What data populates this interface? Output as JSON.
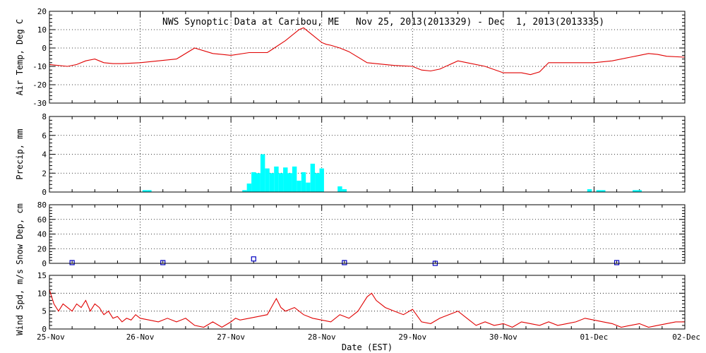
{
  "title": "NWS Synoptic Data at Caribou, ME   Nov 25, 2013(2013329) - Dec  1, 2013(2013335)",
  "colors": {
    "background": "#ffffff",
    "axes": "#000000",
    "temp_line": "#e00000",
    "wind_line": "#e00000",
    "precip_bars": "#00ffff",
    "snow_markers": "#0000c0"
  },
  "chart_data": [
    {
      "id": "air-temp",
      "type": "line",
      "ylabel": "Air Temp, Deg C",
      "ylim": [
        -30,
        20
      ],
      "yticks": [
        -30,
        -20,
        -10,
        0,
        10,
        20
      ],
      "xlim": [
        0,
        7
      ],
      "grid": true,
      "series": [
        {
          "x": [
            0,
            0.2,
            0.3,
            0.4,
            0.5,
            0.6,
            0.7,
            0.8,
            1.0,
            1.2,
            1.4,
            1.6,
            1.8,
            1.9,
            2.0,
            2.2,
            2.4,
            2.6,
            2.75,
            2.8,
            2.9,
            3.0,
            3.05,
            3.1,
            3.2,
            3.3,
            3.5,
            3.7,
            3.8,
            4.0,
            4.1,
            4.2,
            4.3,
            4.5,
            4.6,
            4.8,
            5.0,
            5.2,
            5.3,
            5.4,
            5.5,
            5.7,
            6.0,
            6.2,
            6.4,
            6.5,
            6.6,
            6.7,
            6.8,
            7.0
          ],
          "y": [
            -9,
            -10,
            -9,
            -7,
            -6,
            -8,
            -8.5,
            -8.5,
            -8,
            -7,
            -6,
            0,
            -3,
            -3.5,
            -4,
            -2.5,
            -2.5,
            4,
            10,
            11,
            7,
            3,
            2,
            1.5,
            0,
            -2,
            -8,
            -9,
            -9.5,
            -10,
            -12,
            -12.5,
            -11.5,
            -7,
            -8,
            -10,
            -13.5,
            -13.5,
            -14.5,
            -13,
            -8,
            -8,
            -8,
            -7,
            -5,
            -4,
            -3,
            -3.5,
            -4.5,
            -5
          ]
        }
      ]
    },
    {
      "id": "precip",
      "type": "bar",
      "ylabel": "Precip, mm",
      "ylim": [
        0,
        8
      ],
      "yticks": [
        0,
        2,
        4,
        6,
        8
      ],
      "xlim": [
        0,
        7
      ],
      "grid": true,
      "series": [
        {
          "x": [
            1.05,
            1.1,
            2.15,
            2.2,
            2.25,
            2.3,
            2.35,
            2.4,
            2.45,
            2.5,
            2.55,
            2.6,
            2.65,
            2.7,
            2.75,
            2.8,
            2.85,
            2.9,
            2.95,
            3.0,
            3.2,
            3.25,
            5.95,
            6.05,
            6.1,
            6.45,
            6.5
          ],
          "y": [
            0.2,
            0.2,
            0.2,
            0.9,
            2.1,
            2.0,
            4.0,
            2.5,
            2.0,
            2.7,
            2.0,
            2.6,
            2.0,
            2.7,
            1.2,
            2.1,
            1.0,
            3.0,
            2.0,
            2.5,
            0.6,
            0.3,
            0.3,
            0.2,
            0.2,
            0.2,
            0.2
          ]
        }
      ]
    },
    {
      "id": "snow-depth",
      "type": "scatter",
      "ylabel": "Snow Dep, cm",
      "ylim": [
        0,
        80
      ],
      "yticks": [
        0,
        20,
        40,
        60,
        80
      ],
      "xlim": [
        0,
        7
      ],
      "grid": true,
      "series": [
        {
          "x": [
            0.25,
            1.25,
            2.25,
            3.25,
            4.25,
            6.25
          ],
          "y": [
            1,
            1,
            6,
            1,
            0,
            1
          ]
        }
      ]
    },
    {
      "id": "wind-speed",
      "type": "line",
      "ylabel": "Wind Spd, m/s",
      "ylim": [
        0,
        15
      ],
      "yticks": [
        0,
        5,
        10,
        15
      ],
      "xlim": [
        0,
        7
      ],
      "xlabel": "Date (EST)",
      "xtick_labels": [
        "25-Nov",
        "26-Nov",
        "27-Nov",
        "28-Nov",
        "29-Nov",
        "30-Nov",
        "01-Dec",
        "02-Dec"
      ],
      "grid": true,
      "series": [
        {
          "x": [
            0,
            0.05,
            0.1,
            0.15,
            0.2,
            0.25,
            0.3,
            0.35,
            0.4,
            0.45,
            0.5,
            0.55,
            0.6,
            0.65,
            0.7,
            0.75,
            0.8,
            0.85,
            0.9,
            0.95,
            1.0,
            1.1,
            1.2,
            1.3,
            1.4,
            1.5,
            1.6,
            1.7,
            1.8,
            1.9,
            2.0,
            2.05,
            2.1,
            2.2,
            2.3,
            2.4,
            2.5,
            2.55,
            2.6,
            2.7,
            2.8,
            2.9,
            3.0,
            3.1,
            3.2,
            3.3,
            3.4,
            3.5,
            3.55,
            3.6,
            3.7,
            3.8,
            3.9,
            4.0,
            4.1,
            4.2,
            4.3,
            4.4,
            4.5,
            4.6,
            4.7,
            4.8,
            4.9,
            5.0,
            5.1,
            5.2,
            5.3,
            5.4,
            5.5,
            5.6,
            5.7,
            5.8,
            5.9,
            6.0,
            6.1,
            6.2,
            6.3,
            6.4,
            6.5,
            6.6,
            6.7,
            6.8,
            6.9,
            7.0
          ],
          "y": [
            11,
            7,
            5,
            7,
            6,
            5,
            7,
            6,
            8,
            5,
            7,
            6,
            4,
            5,
            3,
            3.5,
            2,
            3,
            2.5,
            4,
            3,
            2.5,
            2,
            3,
            2,
            3,
            1,
            0.5,
            2,
            0.5,
            2,
            3,
            2.5,
            3,
            3.5,
            4,
            8.5,
            6,
            5,
            6,
            4,
            3,
            2.5,
            2,
            4,
            3,
            5,
            9,
            10,
            8,
            6,
            5,
            4,
            5.5,
            2,
            1.5,
            3,
            4,
            5,
            3,
            1,
            2,
            1,
            1.5,
            0.5,
            2,
            1.5,
            1,
            2,
            1,
            1.5,
            2,
            3,
            2.5,
            2,
            1.5,
            0.5,
            1,
            1.5,
            0.5,
            1,
            1.5,
            2,
            2
          ]
        }
      ]
    }
  ]
}
